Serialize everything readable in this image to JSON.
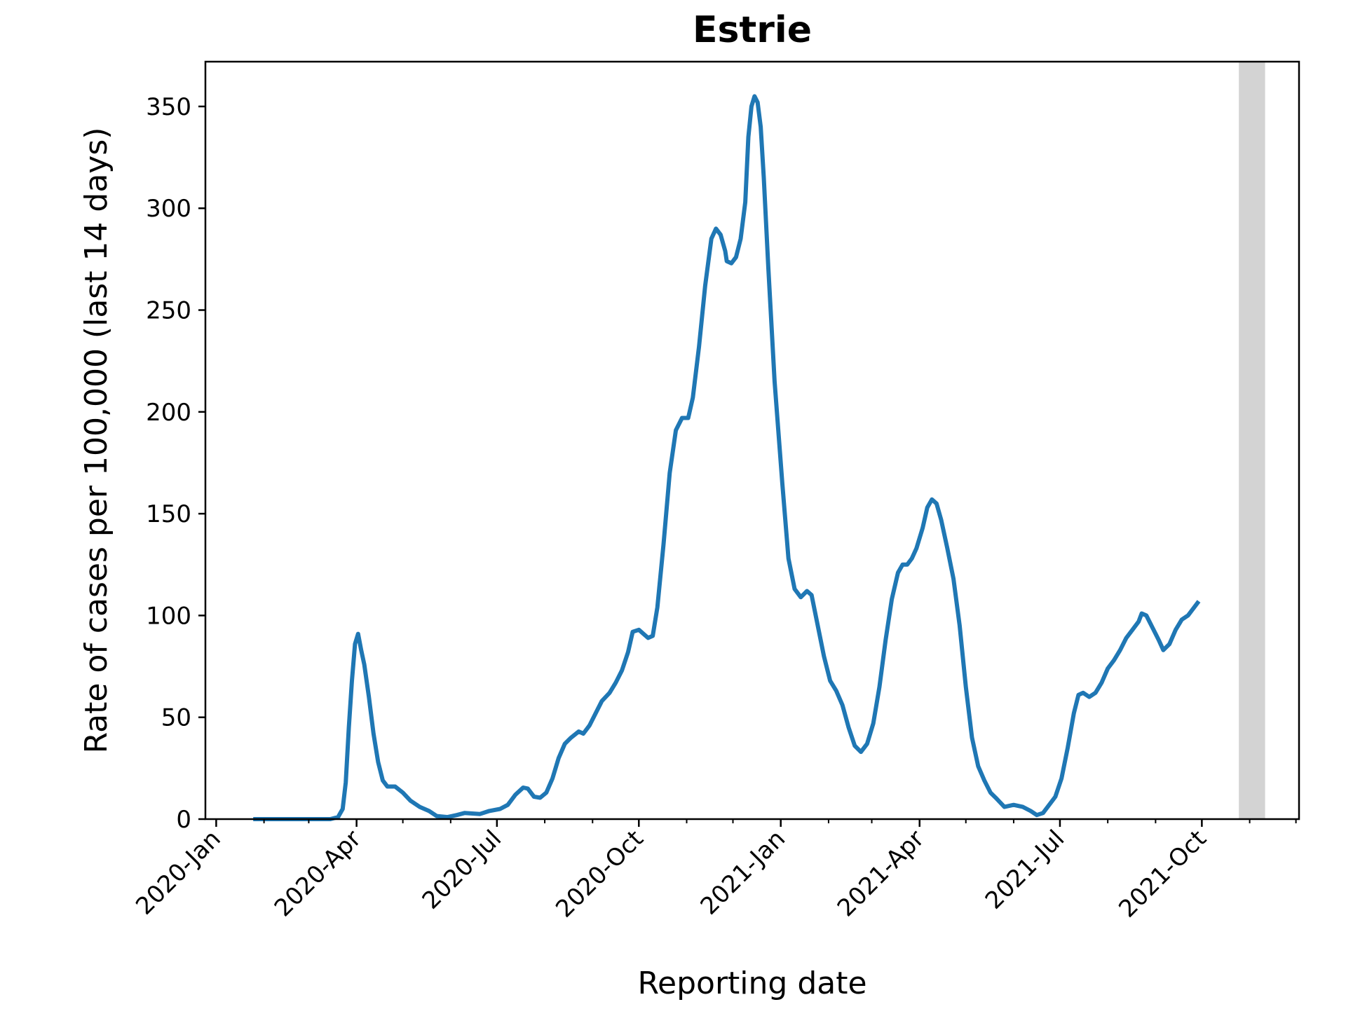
{
  "chart_data": {
    "type": "line",
    "title": "Estrie",
    "xlabel": "Reporting date",
    "ylabel": "Rate of cases per 100,000 (last 14 days)",
    "xlim": [
      "2019-12-25",
      "2021-12-03"
    ],
    "ylim": [
      0,
      372
    ],
    "y_ticks": [
      0,
      50,
      100,
      150,
      200,
      250,
      300,
      350
    ],
    "x_ticks": [
      {
        "date": "2020-01-01",
        "label": "2020-Jan"
      },
      {
        "date": "2020-04-01",
        "label": "2020-Apr"
      },
      {
        "date": "2020-07-01",
        "label": "2020-Jul"
      },
      {
        "date": "2020-10-01",
        "label": "2020-Oct"
      },
      {
        "date": "2021-01-01",
        "label": "2021-Jan"
      },
      {
        "date": "2021-04-01",
        "label": "2021-Apr"
      },
      {
        "date": "2021-07-01",
        "label": "2021-Jul"
      },
      {
        "date": "2021-10-01",
        "label": "2021-Oct"
      }
    ],
    "shaded_span": {
      "start": "2021-10-25",
      "end": "2021-11-11",
      "color": "#d3d3d3"
    },
    "grid": false,
    "legend": "none",
    "series": [
      {
        "color": "#1f77b4",
        "points": [
          [
            "2020-01-25",
            0
          ],
          [
            "2020-02-15",
            0
          ],
          [
            "2020-03-05",
            0
          ],
          [
            "2020-03-15",
            0
          ],
          [
            "2020-03-20",
            1
          ],
          [
            "2020-03-23",
            5
          ],
          [
            "2020-03-25",
            18
          ],
          [
            "2020-03-27",
            45
          ],
          [
            "2020-03-29",
            68
          ],
          [
            "2020-03-31",
            86
          ],
          [
            "2020-04-02",
            91
          ],
          [
            "2020-04-04",
            83
          ],
          [
            "2020-04-06",
            76
          ],
          [
            "2020-04-09",
            60
          ],
          [
            "2020-04-12",
            42
          ],
          [
            "2020-04-15",
            28
          ],
          [
            "2020-04-18",
            19
          ],
          [
            "2020-04-21",
            16
          ],
          [
            "2020-04-26",
            16
          ],
          [
            "2020-05-01",
            13
          ],
          [
            "2020-05-06",
            9
          ],
          [
            "2020-05-12",
            6
          ],
          [
            "2020-05-18",
            4
          ],
          [
            "2020-05-23",
            1.5
          ],
          [
            "2020-05-30",
            1
          ],
          [
            "2020-06-05",
            2
          ],
          [
            "2020-06-10",
            3
          ],
          [
            "2020-06-20",
            2.5
          ],
          [
            "2020-06-26",
            4
          ],
          [
            "2020-07-03",
            5
          ],
          [
            "2020-07-08",
            7
          ],
          [
            "2020-07-13",
            12
          ],
          [
            "2020-07-18",
            15.5
          ],
          [
            "2020-07-21",
            15
          ],
          [
            "2020-07-25",
            11
          ],
          [
            "2020-07-29",
            10.5
          ],
          [
            "2020-08-02",
            13
          ],
          [
            "2020-08-06",
            20
          ],
          [
            "2020-08-10",
            30
          ],
          [
            "2020-08-14",
            37
          ],
          [
            "2020-08-18",
            40
          ],
          [
            "2020-08-23",
            43
          ],
          [
            "2020-08-26",
            42
          ],
          [
            "2020-08-30",
            46
          ],
          [
            "2020-09-03",
            52
          ],
          [
            "2020-09-07",
            58
          ],
          [
            "2020-09-12",
            62
          ],
          [
            "2020-09-16",
            67
          ],
          [
            "2020-09-20",
            73
          ],
          [
            "2020-09-24",
            82
          ],
          [
            "2020-09-27",
            92
          ],
          [
            "2020-10-01",
            93
          ],
          [
            "2020-10-04",
            91
          ],
          [
            "2020-10-07",
            89
          ],
          [
            "2020-10-10",
            90
          ],
          [
            "2020-10-13",
            104
          ],
          [
            "2020-10-17",
            135
          ],
          [
            "2020-10-21",
            170
          ],
          [
            "2020-10-25",
            191
          ],
          [
            "2020-10-29",
            197
          ],
          [
            "2020-11-02",
            197
          ],
          [
            "2020-11-05",
            207
          ],
          [
            "2020-11-09",
            232
          ],
          [
            "2020-11-13",
            262
          ],
          [
            "2020-11-17",
            285
          ],
          [
            "2020-11-20",
            290
          ],
          [
            "2020-11-23",
            287
          ],
          [
            "2020-11-26",
            279
          ],
          [
            "2020-11-27",
            274
          ],
          [
            "2020-11-30",
            273
          ],
          [
            "2020-12-03",
            276
          ],
          [
            "2020-12-06",
            285
          ],
          [
            "2020-12-09",
            303
          ],
          [
            "2020-12-11",
            335
          ],
          [
            "2020-12-13",
            350
          ],
          [
            "2020-12-15",
            355
          ],
          [
            "2020-12-17",
            352
          ],
          [
            "2020-12-19",
            340
          ],
          [
            "2020-12-21",
            315
          ],
          [
            "2020-12-24",
            270
          ],
          [
            "2020-12-28",
            215
          ],
          [
            "2021-01-02",
            165
          ],
          [
            "2021-01-06",
            128
          ],
          [
            "2021-01-10",
            113
          ],
          [
            "2021-01-14",
            109
          ],
          [
            "2021-01-18",
            112
          ],
          [
            "2021-01-21",
            110
          ],
          [
            "2021-01-25",
            95
          ],
          [
            "2021-01-29",
            80
          ],
          [
            "2021-02-02",
            68
          ],
          [
            "2021-02-06",
            63
          ],
          [
            "2021-02-10",
            56
          ],
          [
            "2021-02-14",
            45
          ],
          [
            "2021-02-18",
            36
          ],
          [
            "2021-02-22",
            33
          ],
          [
            "2021-02-26",
            37
          ],
          [
            "2021-03-02",
            47
          ],
          [
            "2021-03-06",
            65
          ],
          [
            "2021-03-10",
            88
          ],
          [
            "2021-03-14",
            108
          ],
          [
            "2021-03-18",
            121
          ],
          [
            "2021-03-21",
            125
          ],
          [
            "2021-03-24",
            125
          ],
          [
            "2021-03-27",
            128
          ],
          [
            "2021-03-30",
            133
          ],
          [
            "2021-04-03",
            143
          ],
          [
            "2021-04-06",
            153
          ],
          [
            "2021-04-09",
            157
          ],
          [
            "2021-04-12",
            155
          ],
          [
            "2021-04-15",
            147
          ],
          [
            "2021-04-19",
            133
          ],
          [
            "2021-04-23",
            118
          ],
          [
            "2021-04-27",
            95
          ],
          [
            "2021-05-01",
            65
          ],
          [
            "2021-05-05",
            40
          ],
          [
            "2021-05-09",
            26
          ],
          [
            "2021-05-13",
            19
          ],
          [
            "2021-05-17",
            13
          ],
          [
            "2021-05-21",
            10
          ],
          [
            "2021-05-26",
            6
          ],
          [
            "2021-06-01",
            7
          ],
          [
            "2021-06-07",
            6
          ],
          [
            "2021-06-12",
            4
          ],
          [
            "2021-06-16",
            2
          ],
          [
            "2021-06-20",
            3
          ],
          [
            "2021-06-24",
            7
          ],
          [
            "2021-06-28",
            11
          ],
          [
            "2021-07-02",
            20
          ],
          [
            "2021-07-06",
            35
          ],
          [
            "2021-07-10",
            52
          ],
          [
            "2021-07-13",
            61
          ],
          [
            "2021-07-16",
            62
          ],
          [
            "2021-07-20",
            60
          ],
          [
            "2021-07-24",
            62
          ],
          [
            "2021-07-28",
            67
          ],
          [
            "2021-08-01",
            74
          ],
          [
            "2021-08-05",
            78
          ],
          [
            "2021-08-09",
            83
          ],
          [
            "2021-08-13",
            89
          ],
          [
            "2021-08-17",
            93
          ],
          [
            "2021-08-21",
            97
          ],
          [
            "2021-08-23",
            101
          ],
          [
            "2021-08-26",
            100
          ],
          [
            "2021-08-30",
            94
          ],
          [
            "2021-09-03",
            88
          ],
          [
            "2021-09-06",
            83
          ],
          [
            "2021-09-10",
            86
          ],
          [
            "2021-09-14",
            93
          ],
          [
            "2021-09-18",
            98
          ],
          [
            "2021-09-22",
            100
          ],
          [
            "2021-09-26",
            104
          ],
          [
            "2021-09-29",
            107
          ]
        ]
      }
    ]
  }
}
